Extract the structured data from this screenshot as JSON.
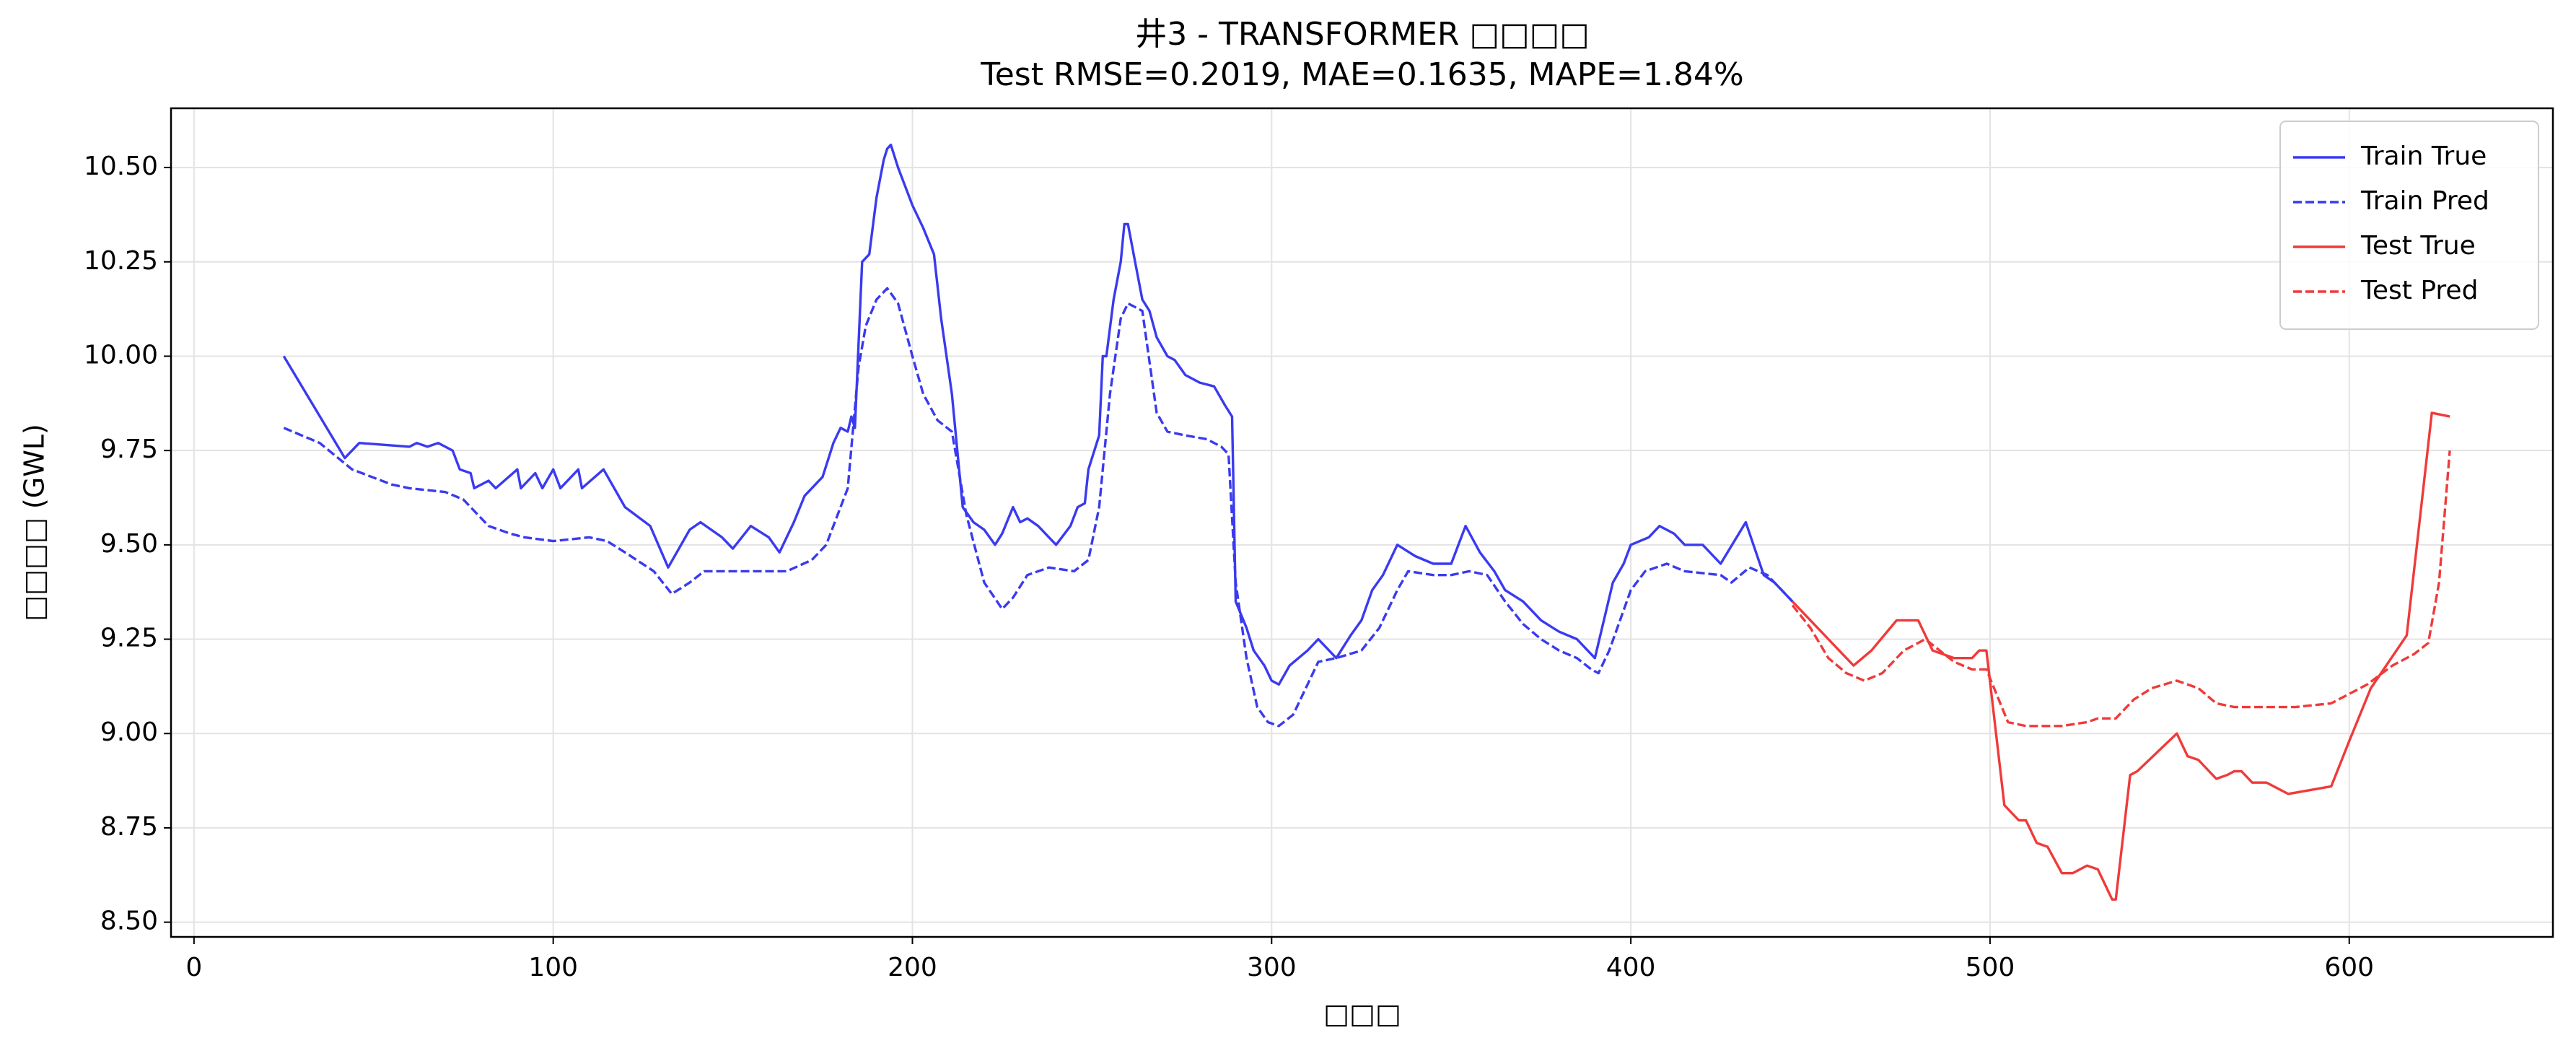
{
  "chart_data": {
    "type": "line",
    "title": "井3 - TRANSFORMER □□□□",
    "subtitle": "Test RMSE=0.2019, MAE=0.1635, MAPE=1.84%",
    "x_label": "□□□",
    "y_label": "□□□□ (GWL)",
    "xlim": [
      -6.4,
      656.7
    ],
    "ylim": [
      8.461,
      10.657
    ],
    "xticks": [
      0,
      100,
      200,
      300,
      400,
      500,
      600
    ],
    "yticks": [
      {
        "value": 8.5,
        "label": "8.50"
      },
      {
        "value": 8.75,
        "label": "8.75"
      },
      {
        "value": 9,
        "label": "9.00"
      },
      {
        "value": 9.25,
        "label": "9.25"
      },
      {
        "value": 9.5,
        "label": "9.50"
      },
      {
        "value": 9.75,
        "label": "9.75"
      },
      {
        "value": 10,
        "label": "10.00"
      },
      {
        "value": 10.25,
        "label": "10.25"
      },
      {
        "value": 10.5,
        "label": "10.50"
      }
    ],
    "grid": true,
    "legend": "upper right",
    "series": [
      {
        "name": "Train True",
        "color": "#3a3af0",
        "linestyle": "solid",
        "x": [
          25,
          42,
          46,
          60,
          62,
          65,
          68,
          72,
          74,
          77,
          78,
          82,
          84,
          90,
          91,
          95,
          97,
          100,
          102,
          107,
          108,
          114,
          120,
          127,
          132,
          138,
          141,
          147,
          150,
          155,
          160,
          163,
          167,
          170,
          175,
          178,
          180,
          182,
          183,
          184,
          186,
          188,
          190,
          192,
          193,
          194,
          196,
          198,
          200,
          203,
          206,
          208,
          211,
          214,
          217,
          220,
          223,
          225,
          228,
          230,
          232,
          235,
          240,
          244,
          246,
          248,
          249,
          252,
          253,
          254,
          256,
          258,
          259,
          260,
          262,
          264,
          266,
          268,
          271,
          273,
          276,
          280,
          284,
          287,
          289,
          290,
          293,
          295,
          298,
          300,
          302,
          305,
          310,
          313,
          318,
          322,
          325,
          328,
          331,
          335,
          340,
          345,
          350,
          354,
          358,
          362,
          365,
          370,
          375,
          380,
          385,
          390,
          395,
          398,
          400,
          405,
          408,
          412,
          415,
          420,
          425,
          432,
          437,
          440,
          445
        ],
        "values": [
          10.0,
          9.73,
          9.77,
          9.76,
          9.77,
          9.76,
          9.77,
          9.75,
          9.7,
          9.69,
          9.65,
          9.67,
          9.65,
          9.7,
          9.65,
          9.69,
          9.65,
          9.7,
          9.65,
          9.7,
          9.65,
          9.7,
          9.6,
          9.55,
          9.44,
          9.54,
          9.56,
          9.52,
          9.49,
          9.55,
          9.52,
          9.48,
          9.56,
          9.63,
          9.68,
          9.77,
          9.81,
          9.8,
          9.84,
          9.81,
          10.25,
          10.27,
          10.42,
          10.52,
          10.55,
          10.56,
          10.5,
          10.45,
          10.4,
          10.34,
          10.27,
          10.1,
          9.9,
          9.6,
          9.56,
          9.54,
          9.5,
          9.53,
          9.6,
          9.56,
          9.57,
          9.55,
          9.5,
          9.55,
          9.6,
          9.61,
          9.7,
          9.79,
          10.0,
          10.0,
          10.15,
          10.25,
          10.35,
          10.35,
          10.25,
          10.15,
          10.12,
          10.05,
          10.0,
          9.99,
          9.95,
          9.93,
          9.92,
          9.87,
          9.84,
          9.35,
          9.28,
          9.22,
          9.18,
          9.14,
          9.13,
          9.18,
          9.22,
          9.25,
          9.2,
          9.26,
          9.3,
          9.38,
          9.42,
          9.5,
          9.47,
          9.45,
          9.45,
          9.55,
          9.48,
          9.43,
          9.38,
          9.35,
          9.3,
          9.27,
          9.25,
          9.2,
          9.4,
          9.45,
          9.5,
          9.52,
          9.55,
          9.53,
          9.5,
          9.5,
          9.45,
          9.56,
          9.42,
          9.4,
          9.35
        ]
      },
      {
        "name": "Train Pred",
        "color": "#3a3af0",
        "linestyle": "dashed",
        "x": [
          25,
          35,
          44,
          55,
          60,
          70,
          75,
          82,
          88,
          92,
          100,
          110,
          115,
          120,
          128,
          133,
          138,
          142,
          150,
          160,
          165,
          172,
          176,
          180,
          182,
          185,
          187,
          190,
          193,
          196,
          200,
          203,
          207,
          211,
          215,
          220,
          225,
          228,
          232,
          238,
          245,
          249,
          252,
          255,
          258,
          260,
          264,
          268,
          271,
          276,
          282,
          286,
          288,
          290,
          293,
          296,
          299,
          302,
          306,
          310,
          313,
          318,
          325,
          330,
          335,
          338,
          345,
          350,
          355,
          360,
          365,
          370,
          375,
          380,
          385,
          389,
          391,
          394,
          400,
          404,
          410,
          415,
          425,
          428,
          433,
          438,
          442,
          445
        ],
        "values": [
          9.81,
          9.77,
          9.7,
          9.66,
          9.65,
          9.64,
          9.62,
          9.55,
          9.53,
          9.52,
          9.51,
          9.52,
          9.51,
          9.48,
          9.43,
          9.37,
          9.4,
          9.43,
          9.43,
          9.43,
          9.43,
          9.46,
          9.5,
          9.6,
          9.65,
          9.97,
          10.08,
          10.15,
          10.18,
          10.14,
          10.0,
          9.9,
          9.83,
          9.8,
          9.58,
          9.4,
          9.33,
          9.36,
          9.42,
          9.44,
          9.43,
          9.46,
          9.6,
          9.9,
          10.1,
          10.14,
          10.12,
          9.85,
          9.8,
          9.79,
          9.78,
          9.76,
          9.74,
          9.4,
          9.2,
          9.07,
          9.03,
          9.02,
          9.05,
          9.13,
          9.19,
          9.2,
          9.22,
          9.28,
          9.38,
          9.43,
          9.42,
          9.42,
          9.43,
          9.42,
          9.35,
          9.29,
          9.25,
          9.22,
          9.2,
          9.17,
          9.16,
          9.22,
          9.38,
          9.43,
          9.45,
          9.43,
          9.42,
          9.4,
          9.44,
          9.42,
          9.38,
          9.35
        ]
      },
      {
        "name": "Test True",
        "color": "#f03a3a",
        "linestyle": "solid",
        "x": [
          445,
          450,
          455,
          458,
          462,
          467,
          474,
          480,
          484,
          490,
          495,
          497,
          499,
          504,
          508,
          510,
          513,
          516,
          520,
          523,
          527,
          530,
          534,
          535,
          539,
          541,
          552,
          555,
          558,
          563,
          566,
          568,
          570,
          573,
          577,
          583,
          595,
          600,
          606,
          616,
          623,
          628
        ],
        "values": [
          9.35,
          9.3,
          9.25,
          9.22,
          9.18,
          9.22,
          9.3,
          9.3,
          9.22,
          9.2,
          9.2,
          9.22,
          9.22,
          8.81,
          8.77,
          8.77,
          8.71,
          8.7,
          8.63,
          8.63,
          8.65,
          8.64,
          8.56,
          8.56,
          8.89,
          8.9,
          9.0,
          8.94,
          8.93,
          8.88,
          8.89,
          8.9,
          8.9,
          8.87,
          8.87,
          8.84,
          8.86,
          8.98,
          9.12,
          9.26,
          9.85,
          9.84
        ]
      },
      {
        "name": "Test Pred",
        "color": "#f03a3a",
        "linestyle": "dashed",
        "x": [
          445,
          450,
          455,
          460,
          465,
          470,
          476,
          482,
          490,
          495,
          499,
          502,
          505,
          510,
          520,
          527,
          530,
          535,
          540,
          545,
          552,
          558,
          563,
          568,
          575,
          585,
          595,
          605,
          612,
          618,
          622,
          625,
          628
        ],
        "values": [
          9.34,
          9.28,
          9.2,
          9.16,
          9.14,
          9.16,
          9.22,
          9.25,
          9.19,
          9.17,
          9.17,
          9.1,
          9.03,
          9.02,
          9.02,
          9.03,
          9.04,
          9.04,
          9.09,
          9.12,
          9.14,
          9.12,
          9.08,
          9.07,
          9.07,
          9.07,
          9.08,
          9.13,
          9.18,
          9.21,
          9.24,
          9.4,
          9.75
        ]
      }
    ]
  }
}
